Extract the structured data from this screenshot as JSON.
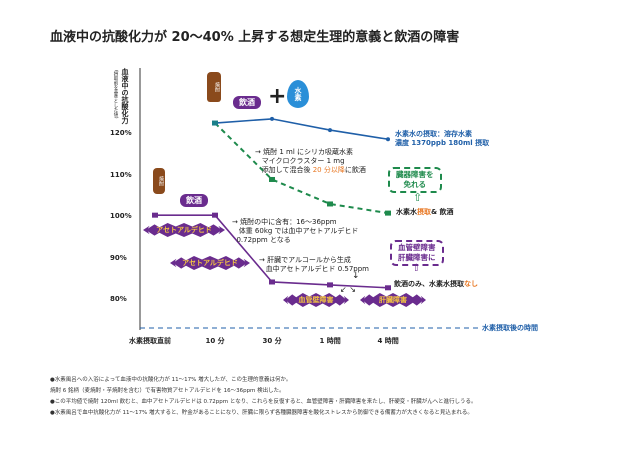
{
  "chart_data": {
    "type": "line",
    "title": "血液中の抗酸化力が 20〜40% 上昇する想定生理的意義と飲酒の障害",
    "ylabel": "血液中の抗酸化力",
    "ylabel_sub": "(摂取前を基準とした値)",
    "xlabel": "水素摂取後の時間",
    "ylim": [
      78,
      132
    ],
    "yticks": [
      {
        "v": 120,
        "label": "120%"
      },
      {
        "v": 110,
        "label": "110%"
      },
      {
        "v": 100,
        "label": "100%"
      },
      {
        "v": 90,
        "label": "90%"
      },
      {
        "v": 80,
        "label": "80%"
      }
    ],
    "categories": [
      "水素摂取直前",
      "10 分",
      "30 分",
      "1 時間",
      "4 時間"
    ],
    "series": [
      {
        "name": "水素水の摂取：溶存水素 濃度 1370ppb 180ml 摂取",
        "color": "#1f5fa8",
        "style": "solid",
        "values": [
          null,
          122.4,
          123.4,
          120.7,
          118.5
        ]
      },
      {
        "name": "水素水摂取&飲酒",
        "color": "#1e8a4c",
        "style": "dashed",
        "values": [
          null,
          122.4,
          108.8,
          102.9,
          100.7
        ]
      },
      {
        "name": "飲酒のみ、水素水摂取なし",
        "color": "#6a2c8e",
        "style": "solid",
        "values": [
          100.2,
          100.2,
          84.1,
          83.4,
          82.7
        ]
      }
    ],
    "annotations": {
      "drink_label": "飲酒",
      "hydrogen_label": "水素",
      "bottle_label": "焼酎",
      "plus": "+",
      "note1": [
        "焼酎 1 ml にシリカ吸蔵水素",
        "マイクロクラスター 1 mg",
        "添加して混合後 "
      ],
      "note1_orange": "20 分以降",
      "note1_end": "に飲酒",
      "blue_label": [
        "水素水の摂取：溶存水素",
        "濃度 1370ppb 180ml 摂取"
      ],
      "green_label_a": "水素水",
      "green_label_b": "摂取",
      "green_label_c": "& 飲酒",
      "green_box": [
        "臓器障害を",
        "免れる"
      ],
      "purple_box": [
        "血管壁障害",
        "肝臓障害に"
      ],
      "purple_label_a": "飲酒のみ、水素水摂取",
      "purple_label_b": "なし",
      "acet1": "アセトアルデヒド",
      "acet2": "アセトアルデヒド",
      "note2": [
        "焼酎の中に含有：16〜36ppm",
        "体重 60kg では血中アセトアルデヒド",
        "0.72ppm となる"
      ],
      "note3": [
        "肝臓でアルコールから生成",
        "血中アセトアルデヒド 0.57ppm"
      ],
      "harm1": "血管壁障害",
      "harm2": "肝臓障害"
    }
  },
  "notes": [
    "●水素風呂への入浴によって血液中の抗酸化力が 11〜17% 増大したが、この生理的意義は何か。",
    "焼酎 6 銘柄（麦焼酎・芋焼酎を含む）で有害物質アセトアルデヒドを 16〜36ppm 検出した。",
    "●この平均値で焼酎 120ml 飲むと、血中アセトアルデヒドは 0.72ppm となり、これらを反復すると、血管壁障害・肝臓障害を来たし、肝硬変・肝臓がんへと進行しうる。",
    "●水素風呂で血中抗酸化力が 11〜17% 増大すると、貯金があることになり、肝臓に限らず各種臓器障害を酸化ストレスから防御できる備蓄力が大きくなると見込まれる。"
  ]
}
